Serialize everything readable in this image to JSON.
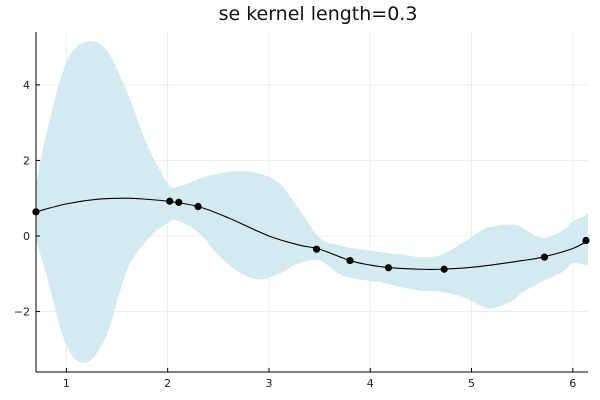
{
  "chart_data": {
    "type": "line",
    "title": "se kernel  length=0.3",
    "xlabel": "",
    "ylabel": "",
    "xlim": [
      0.7,
      6.15
    ],
    "ylim": [
      -3.6,
      5.4
    ],
    "x_ticks": [
      1,
      2,
      3,
      4,
      5,
      6
    ],
    "y_ticks": [
      -2,
      0,
      2,
      4
    ],
    "y_tick_labels": [
      "−2",
      "0",
      "2",
      "4"
    ],
    "grid": true,
    "legend": "none",
    "colors": {
      "band": "#d3eaf1",
      "mean_line": "#000000",
      "points": "#000000",
      "grid": "#ececec",
      "axis": "#000000"
    },
    "mean": {
      "x": [
        0.7,
        1.0,
        1.3,
        1.6,
        1.8,
        2.0,
        2.3,
        2.6,
        3.0,
        3.3,
        3.5,
        3.8,
        4.0,
        4.2,
        4.5,
        4.7,
        5.0,
        5.3,
        5.5,
        5.7,
        6.0,
        6.15
      ],
      "y": [
        0.64,
        0.85,
        0.97,
        1.0,
        0.97,
        0.92,
        0.78,
        0.48,
        0.0,
        -0.24,
        -0.35,
        -0.65,
        -0.77,
        -0.84,
        -0.88,
        -0.88,
        -0.83,
        -0.73,
        -0.65,
        -0.56,
        -0.33,
        -0.12
      ]
    },
    "confidence_band": {
      "x": [
        0.7,
        0.8,
        1.0,
        1.2,
        1.4,
        1.6,
        1.8,
        2.0,
        2.1,
        2.3,
        2.5,
        2.7,
        2.9,
        3.1,
        3.3,
        3.5,
        3.7,
        3.9,
        4.1,
        4.3,
        4.5,
        4.7,
        4.9,
        5.1,
        5.2,
        5.4,
        5.5,
        5.7,
        5.9,
        6.0,
        6.15
      ],
      "upper": [
        1.3,
        2.7,
        4.6,
        5.15,
        4.9,
        3.8,
        2.4,
        1.4,
        1.3,
        1.5,
        1.65,
        1.72,
        1.65,
        1.4,
        0.7,
        -0.05,
        -0.25,
        -0.35,
        -0.42,
        -0.48,
        -0.56,
        -0.5,
        -0.2,
        0.15,
        0.25,
        0.3,
        0.22,
        -0.05,
        0.15,
        0.38,
        0.58
      ],
      "lower": [
        -0.1,
        -1.0,
        -2.9,
        -3.35,
        -2.6,
        -0.9,
        -0.1,
        0.35,
        0.4,
        0.1,
        -0.5,
        -0.95,
        -1.15,
        -1.0,
        -0.72,
        -0.65,
        -1.02,
        -1.15,
        -1.22,
        -1.35,
        -1.45,
        -1.48,
        -1.6,
        -1.85,
        -1.92,
        -1.72,
        -1.5,
        -1.2,
        -0.95,
        -0.72,
        -0.78
      ]
    },
    "points": {
      "x": [
        0.7,
        2.02,
        2.11,
        2.3,
        3.47,
        3.8,
        4.18,
        4.73,
        5.72,
        6.13
      ],
      "y": [
        0.64,
        0.92,
        0.89,
        0.78,
        -0.35,
        -0.65,
        -0.84,
        -0.88,
        -0.56,
        -0.12
      ]
    }
  }
}
